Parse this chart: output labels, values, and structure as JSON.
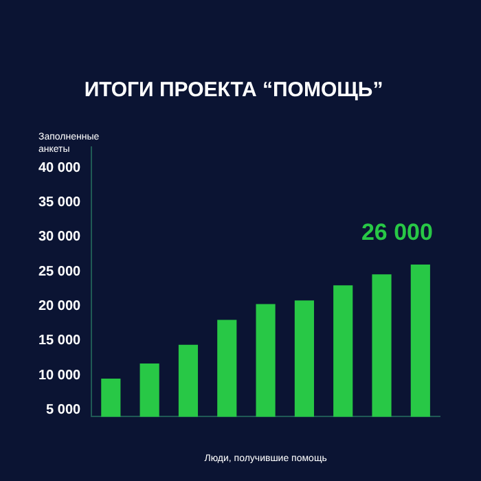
{
  "chart_data": {
    "type": "bar",
    "title": "ИТОГИ ПРОЕКТА “ПОМОЩЬ”",
    "ylabel": "Заполненные анкеты",
    "xlabel": "Люди, получившие помощь",
    "categories": [
      null,
      null,
      null,
      null,
      null,
      null,
      null,
      null,
      null
    ],
    "values": [
      9500,
      11700,
      14400,
      18000,
      20300,
      20800,
      23000,
      24600,
      26000
    ],
    "value_labels": [
      null,
      null,
      null,
      null,
      null,
      null,
      null,
      null,
      "26 000"
    ],
    "color": "#28c846",
    "ylim": [
      4000,
      43000
    ],
    "yticks": [
      {
        "value": 5000,
        "label": "5 000"
      },
      {
        "value": 10000,
        "label": "10 000"
      },
      {
        "value": 15000,
        "label": "15 000"
      },
      {
        "value": 20000,
        "label": "20 000"
      },
      {
        "value": 25000,
        "label": "25 000"
      },
      {
        "value": 30000,
        "label": "30 000"
      },
      {
        "value": 35000,
        "label": "35 000"
      },
      {
        "value": 40000,
        "label": "40 000"
      }
    ],
    "grid": false,
    "legend": false
  }
}
